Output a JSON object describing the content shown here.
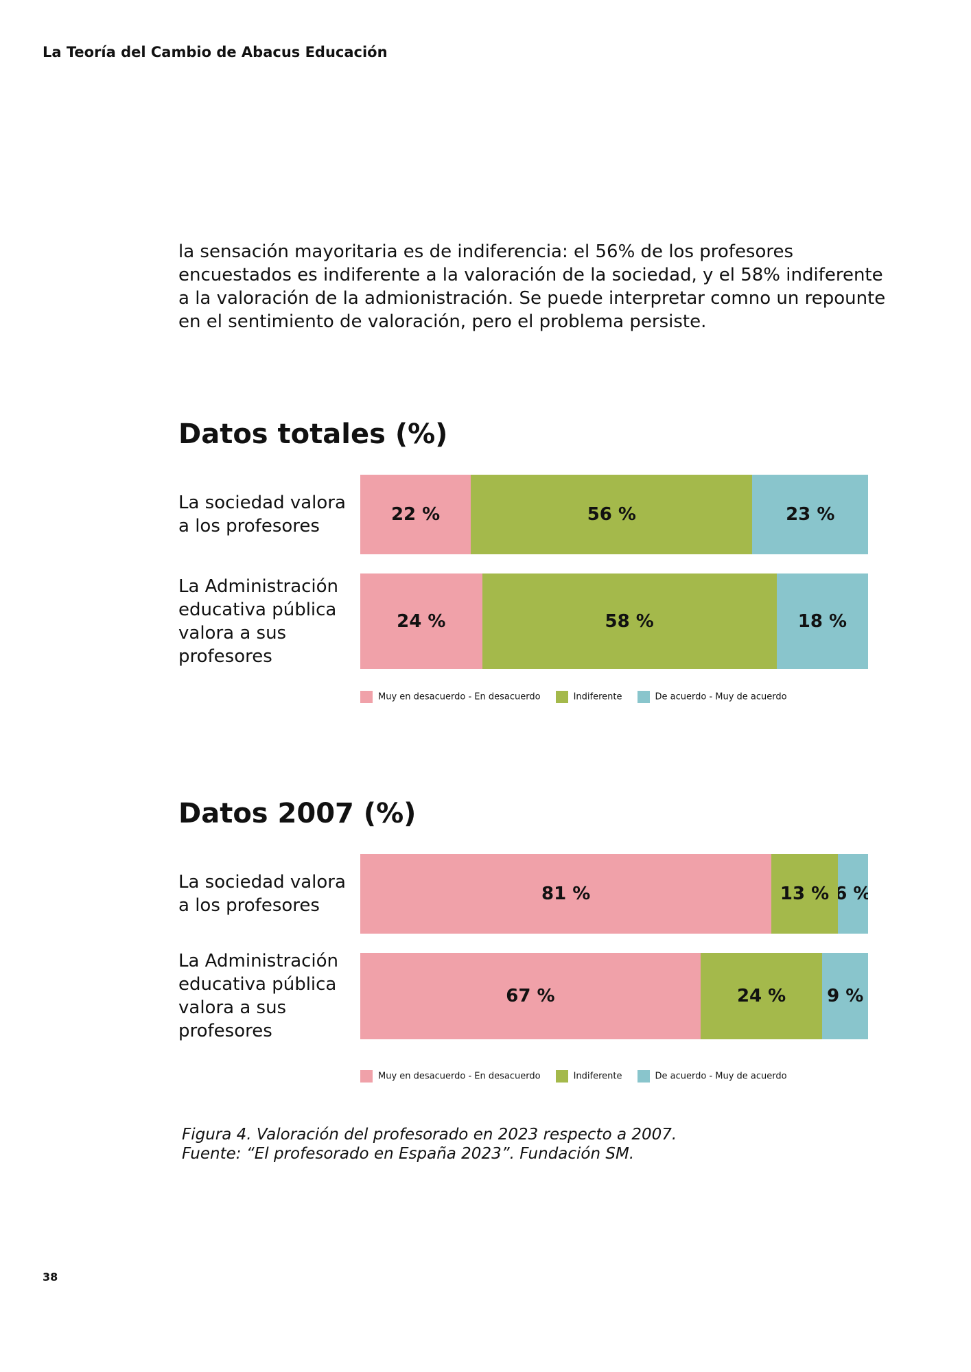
{
  "header": {
    "title": "La Teoría del Cambio de Abacus Educación"
  },
  "body": {
    "paragraph": "la sensación mayoritaria es de indiferencia: el 56% de los profesores encuestados es indiferente a la valoración de la sociedad, y el 58% indiferente a la valoración de la admionistración. Se puede interpretar comno un repounte en el sentimiento de valoración, pero el problema persiste."
  },
  "chart_data": [
    {
      "type": "stacked-bar",
      "title": "Datos totales (%)",
      "categories": [
        "La sociedad valora a los profesores",
        "La Administración educativa pública valora a sus profesores"
      ],
      "series": [
        {
          "name": "Muy en desacuerdo - En desacuerdo",
          "color": "#f0a1a9",
          "values": [
            22,
            24
          ],
          "value_labels": [
            "22 %",
            "24 %"
          ]
        },
        {
          "name": "Indiferente",
          "color": "#a4b94b",
          "values": [
            56,
            58
          ],
          "value_labels": [
            "56 %",
            "58 %"
          ]
        },
        {
          "name": "De acuerdo - Muy de acuerdo",
          "color": "#89c5cc",
          "values": [
            23,
            18
          ],
          "value_labels": [
            "23 %",
            "18 %"
          ]
        }
      ]
    },
    {
      "type": "stacked-bar",
      "title": "Datos 2007 (%)",
      "categories": [
        "La sociedad valora a los profesores",
        "La Administración educativa pública valora a sus profesores"
      ],
      "series": [
        {
          "name": "Muy en desacuerdo - En desacuerdo",
          "color": "#f0a1a9",
          "values": [
            81,
            67
          ],
          "value_labels": [
            "81 %",
            "67 %"
          ]
        },
        {
          "name": "Indiferente",
          "color": "#a4b94b",
          "values": [
            13,
            24
          ],
          "value_labels": [
            "13 %",
            "24 %"
          ]
        },
        {
          "name": "De acuerdo - Muy de acuerdo",
          "color": "#89c5cc",
          "values": [
            6,
            9
          ],
          "value_labels": [
            "6 %",
            "9 %"
          ]
        }
      ]
    }
  ],
  "caption": {
    "line1": "Figura 4. Valoración del profesorado en 2023 respecto a 2007.",
    "line2": "Fuente: “El profesorado en España 2023”. Fundación SM."
  },
  "footer": {
    "page_number": "38"
  }
}
